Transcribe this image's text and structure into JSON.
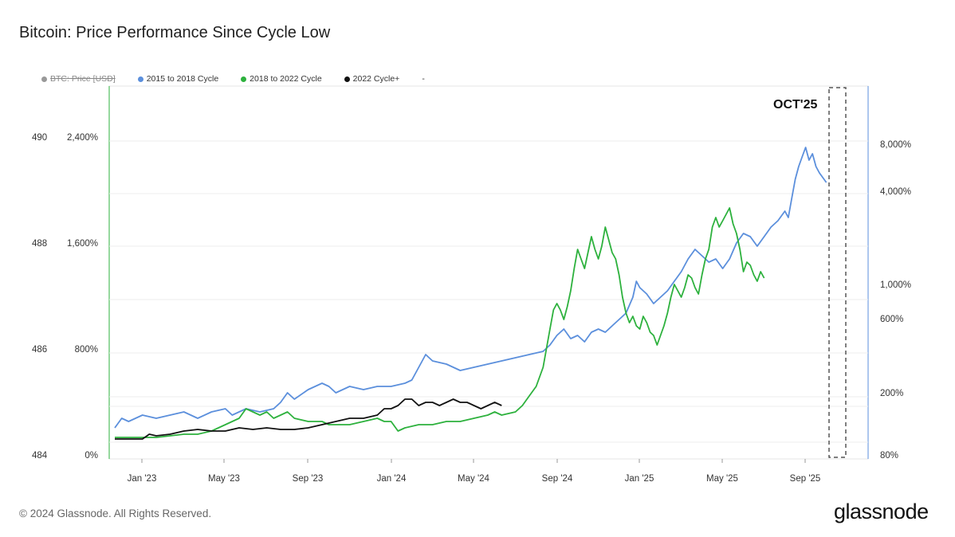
{
  "header": {
    "title": "Bitcoin: Price Performance Since Cycle Low"
  },
  "footer": {
    "copyright": "© 2024 Glassnode. All Rights Reserved.",
    "brand": "glassnode"
  },
  "legend": [
    {
      "label": "BTC: Price [USD]",
      "color": "#999999",
      "disabled": true
    },
    {
      "label": "2015 to 2018 Cycle",
      "color": "#5b8fdc",
      "disabled": false
    },
    {
      "label": "2018 to 2022 Cycle",
      "color": "#2db13d",
      "disabled": false
    },
    {
      "label": "2022 Cycle+",
      "color": "#111111",
      "disabled": false
    },
    {
      "label": "-",
      "color": "",
      "disabled": false
    }
  ],
  "chart_data": {
    "type": "line",
    "x_ticks": [
      "Jan '23",
      "May '23",
      "Sep '23",
      "Jan '24",
      "May '24",
      "Sep '24",
      "Jan '25",
      "May '25",
      "Sep '25"
    ],
    "left_axis_outer": [
      "490",
      "488",
      "486",
      "484"
    ],
    "left_axis_inner": [
      "2,400%",
      "1,600%",
      "800%",
      "0%"
    ],
    "right_axis": [
      "8,000%",
      "4,000%",
      "1,000%",
      "600%",
      "200%",
      "80%"
    ],
    "annotation": "OCT'25",
    "series": [
      {
        "name": "2015 to 2018 Cycle",
        "color": "#5b8fdc",
        "points": [
          [
            0,
            0.07
          ],
          [
            0.01,
            0.1
          ],
          [
            0.02,
            0.09
          ],
          [
            0.04,
            0.11
          ],
          [
            0.06,
            0.1
          ],
          [
            0.08,
            0.11
          ],
          [
            0.1,
            0.12
          ],
          [
            0.12,
            0.1
          ],
          [
            0.14,
            0.12
          ],
          [
            0.16,
            0.13
          ],
          [
            0.17,
            0.11
          ],
          [
            0.19,
            0.13
          ],
          [
            0.21,
            0.12
          ],
          [
            0.23,
            0.13
          ],
          [
            0.24,
            0.15
          ],
          [
            0.25,
            0.18
          ],
          [
            0.26,
            0.16
          ],
          [
            0.28,
            0.19
          ],
          [
            0.3,
            0.21
          ],
          [
            0.31,
            0.2
          ],
          [
            0.32,
            0.18
          ],
          [
            0.34,
            0.2
          ],
          [
            0.36,
            0.19
          ],
          [
            0.38,
            0.2
          ],
          [
            0.4,
            0.2
          ],
          [
            0.42,
            0.21
          ],
          [
            0.43,
            0.22
          ],
          [
            0.44,
            0.26
          ],
          [
            0.45,
            0.3
          ],
          [
            0.46,
            0.28
          ],
          [
            0.48,
            0.27
          ],
          [
            0.5,
            0.25
          ],
          [
            0.52,
            0.26
          ],
          [
            0.54,
            0.27
          ],
          [
            0.56,
            0.28
          ],
          [
            0.58,
            0.29
          ],
          [
            0.6,
            0.3
          ],
          [
            0.62,
            0.31
          ],
          [
            0.63,
            0.33
          ],
          [
            0.64,
            0.36
          ],
          [
            0.65,
            0.38
          ],
          [
            0.66,
            0.35
          ],
          [
            0.67,
            0.36
          ],
          [
            0.68,
            0.34
          ],
          [
            0.69,
            0.37
          ],
          [
            0.7,
            0.38
          ],
          [
            0.71,
            0.37
          ],
          [
            0.72,
            0.39
          ],
          [
            0.73,
            0.41
          ],
          [
            0.74,
            0.43
          ],
          [
            0.75,
            0.48
          ],
          [
            0.755,
            0.53
          ],
          [
            0.76,
            0.51
          ],
          [
            0.77,
            0.49
          ],
          [
            0.78,
            0.46
          ],
          [
            0.79,
            0.48
          ],
          [
            0.8,
            0.5
          ],
          [
            0.81,
            0.53
          ],
          [
            0.82,
            0.56
          ],
          [
            0.83,
            0.6
          ],
          [
            0.84,
            0.63
          ],
          [
            0.85,
            0.61
          ],
          [
            0.86,
            0.59
          ],
          [
            0.87,
            0.6
          ],
          [
            0.88,
            0.57
          ],
          [
            0.89,
            0.6
          ],
          [
            0.9,
            0.65
          ],
          [
            0.91,
            0.68
          ],
          [
            0.92,
            0.67
          ],
          [
            0.93,
            0.64
          ],
          [
            0.94,
            0.67
          ],
          [
            0.95,
            0.7
          ],
          [
            0.96,
            0.72
          ],
          [
            0.97,
            0.75
          ],
          [
            0.975,
            0.73
          ],
          [
            0.98,
            0.79
          ],
          [
            0.985,
            0.85
          ],
          [
            0.99,
            0.89
          ],
          [
            0.995,
            0.92
          ],
          [
            1.0,
            0.95
          ],
          [
            1.005,
            0.91
          ],
          [
            1.01,
            0.93
          ],
          [
            1.015,
            0.89
          ],
          [
            1.02,
            0.87
          ],
          [
            1.03,
            0.84
          ]
        ]
      },
      {
        "name": "2018 to 2022 Cycle",
        "color": "#2db13d",
        "points": [
          [
            0,
            0.04
          ],
          [
            0.02,
            0.04
          ],
          [
            0.04,
            0.04
          ],
          [
            0.06,
            0.04
          ],
          [
            0.08,
            0.045
          ],
          [
            0.1,
            0.05
          ],
          [
            0.12,
            0.05
          ],
          [
            0.14,
            0.06
          ],
          [
            0.16,
            0.08
          ],
          [
            0.18,
            0.1
          ],
          [
            0.19,
            0.13
          ],
          [
            0.2,
            0.12
          ],
          [
            0.21,
            0.11
          ],
          [
            0.22,
            0.12
          ],
          [
            0.23,
            0.1
          ],
          [
            0.24,
            0.11
          ],
          [
            0.25,
            0.12
          ],
          [
            0.26,
            0.1
          ],
          [
            0.28,
            0.09
          ],
          [
            0.3,
            0.09
          ],
          [
            0.31,
            0.08
          ],
          [
            0.32,
            0.08
          ],
          [
            0.34,
            0.08
          ],
          [
            0.36,
            0.09
          ],
          [
            0.38,
            0.1
          ],
          [
            0.39,
            0.09
          ],
          [
            0.4,
            0.09
          ],
          [
            0.41,
            0.06
          ],
          [
            0.42,
            0.07
          ],
          [
            0.44,
            0.08
          ],
          [
            0.46,
            0.08
          ],
          [
            0.48,
            0.09
          ],
          [
            0.5,
            0.09
          ],
          [
            0.52,
            0.1
          ],
          [
            0.54,
            0.11
          ],
          [
            0.55,
            0.12
          ],
          [
            0.56,
            0.11
          ],
          [
            0.58,
            0.12
          ],
          [
            0.59,
            0.14
          ],
          [
            0.6,
            0.17
          ],
          [
            0.61,
            0.2
          ],
          [
            0.62,
            0.26
          ],
          [
            0.625,
            0.32
          ],
          [
            0.63,
            0.38
          ],
          [
            0.635,
            0.44
          ],
          [
            0.64,
            0.46
          ],
          [
            0.645,
            0.44
          ],
          [
            0.65,
            0.41
          ],
          [
            0.655,
            0.45
          ],
          [
            0.66,
            0.5
          ],
          [
            0.665,
            0.57
          ],
          [
            0.67,
            0.63
          ],
          [
            0.675,
            0.6
          ],
          [
            0.68,
            0.57
          ],
          [
            0.685,
            0.62
          ],
          [
            0.69,
            0.67
          ],
          [
            0.695,
            0.63
          ],
          [
            0.7,
            0.6
          ],
          [
            0.705,
            0.64
          ],
          [
            0.71,
            0.7
          ],
          [
            0.715,
            0.66
          ],
          [
            0.72,
            0.62
          ],
          [
            0.725,
            0.6
          ],
          [
            0.73,
            0.55
          ],
          [
            0.735,
            0.48
          ],
          [
            0.74,
            0.43
          ],
          [
            0.745,
            0.4
          ],
          [
            0.75,
            0.42
          ],
          [
            0.755,
            0.39
          ],
          [
            0.76,
            0.38
          ],
          [
            0.765,
            0.42
          ],
          [
            0.77,
            0.4
          ],
          [
            0.775,
            0.37
          ],
          [
            0.78,
            0.36
          ],
          [
            0.785,
            0.33
          ],
          [
            0.79,
            0.36
          ],
          [
            0.795,
            0.39
          ],
          [
            0.8,
            0.43
          ],
          [
            0.805,
            0.48
          ],
          [
            0.81,
            0.52
          ],
          [
            0.815,
            0.5
          ],
          [
            0.82,
            0.48
          ],
          [
            0.825,
            0.51
          ],
          [
            0.83,
            0.55
          ],
          [
            0.835,
            0.54
          ],
          [
            0.84,
            0.51
          ],
          [
            0.845,
            0.49
          ],
          [
            0.85,
            0.55
          ],
          [
            0.855,
            0.6
          ],
          [
            0.86,
            0.63
          ],
          [
            0.865,
            0.7
          ],
          [
            0.87,
            0.73
          ],
          [
            0.875,
            0.7
          ],
          [
            0.88,
            0.72
          ],
          [
            0.885,
            0.74
          ],
          [
            0.89,
            0.76
          ],
          [
            0.895,
            0.71
          ],
          [
            0.9,
            0.68
          ],
          [
            0.905,
            0.63
          ],
          [
            0.91,
            0.56
          ],
          [
            0.915,
            0.59
          ],
          [
            0.92,
            0.58
          ],
          [
            0.925,
            0.55
          ],
          [
            0.93,
            0.53
          ],
          [
            0.935,
            0.56
          ],
          [
            0.94,
            0.54
          ]
        ]
      },
      {
        "name": "2022 Cycle+",
        "color": "#111111",
        "points": [
          [
            0,
            0.035
          ],
          [
            0.02,
            0.035
          ],
          [
            0.04,
            0.035
          ],
          [
            0.05,
            0.05
          ],
          [
            0.06,
            0.045
          ],
          [
            0.08,
            0.05
          ],
          [
            0.1,
            0.06
          ],
          [
            0.12,
            0.065
          ],
          [
            0.14,
            0.06
          ],
          [
            0.16,
            0.06
          ],
          [
            0.18,
            0.07
          ],
          [
            0.2,
            0.065
          ],
          [
            0.22,
            0.07
          ],
          [
            0.24,
            0.065
          ],
          [
            0.26,
            0.065
          ],
          [
            0.28,
            0.07
          ],
          [
            0.3,
            0.08
          ],
          [
            0.32,
            0.09
          ],
          [
            0.34,
            0.1
          ],
          [
            0.36,
            0.1
          ],
          [
            0.38,
            0.11
          ],
          [
            0.39,
            0.13
          ],
          [
            0.4,
            0.13
          ],
          [
            0.41,
            0.14
          ],
          [
            0.42,
            0.16
          ],
          [
            0.43,
            0.16
          ],
          [
            0.44,
            0.14
          ],
          [
            0.45,
            0.15
          ],
          [
            0.46,
            0.15
          ],
          [
            0.47,
            0.14
          ],
          [
            0.48,
            0.15
          ],
          [
            0.49,
            0.16
          ],
          [
            0.5,
            0.15
          ],
          [
            0.51,
            0.15
          ],
          [
            0.52,
            0.14
          ],
          [
            0.53,
            0.13
          ],
          [
            0.54,
            0.14
          ],
          [
            0.55,
            0.15
          ],
          [
            0.56,
            0.14
          ]
        ]
      }
    ]
  }
}
